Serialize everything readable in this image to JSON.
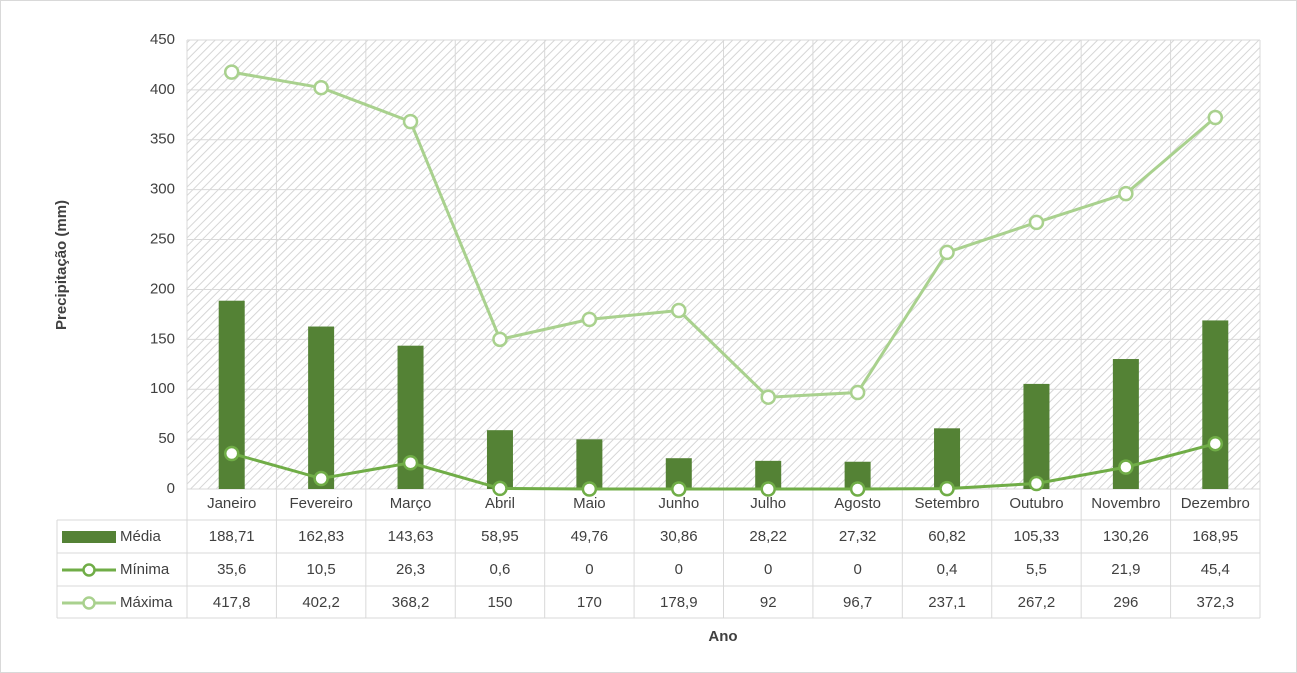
{
  "chart_data": {
    "type": "bar-line-table",
    "y_label": "Precipitação (mm)",
    "x_label": "Ano",
    "categories": [
      "Janeiro",
      "Fevereiro",
      "Março",
      "Abril",
      "Maio",
      "Junho",
      "Julho",
      "Agosto",
      "Setembro",
      "Outubro",
      "Novembro",
      "Dezembro"
    ],
    "series": [
      {
        "name": "Média",
        "type": "bar",
        "color": "#548235",
        "values": [
          188.71,
          162.83,
          143.63,
          58.95,
          49.76,
          30.86,
          28.22,
          27.32,
          60.82,
          105.33,
          130.26,
          168.95
        ],
        "value_labels": [
          "188,71",
          "162,83",
          "143,63",
          "58,95",
          "49,76",
          "30,86",
          "28,22",
          "27,32",
          "60,82",
          "105,33",
          "130,26",
          "168,95"
        ]
      },
      {
        "name": "Mínima",
        "type": "line",
        "color": "#70ad47",
        "values": [
          35.6,
          10.5,
          26.3,
          0.6,
          0,
          0,
          0,
          0,
          0.4,
          5.5,
          21.9,
          45.4
        ],
        "value_labels": [
          "35,6",
          "10,5",
          "26,3",
          "0,6",
          "0",
          "0",
          "0",
          "0",
          "0,4",
          "5,5",
          "21,9",
          "45,4"
        ]
      },
      {
        "name": "Máxima",
        "type": "line",
        "color": "#a9d18e",
        "values": [
          417.8,
          402.2,
          368.2,
          150,
          170,
          178.9,
          92,
          96.7,
          237.1,
          267.2,
          296,
          372.3
        ],
        "value_labels": [
          "417,8",
          "402,2",
          "368,2",
          "150",
          "170",
          "178,9",
          "92",
          "96,7",
          "237,1",
          "267,2",
          "296",
          "372,3"
        ]
      }
    ],
    "ylim": [
      0,
      450
    ],
    "yticks": [
      0,
      50,
      100,
      150,
      200,
      250,
      300,
      350,
      400,
      450
    ],
    "grid": true
  }
}
